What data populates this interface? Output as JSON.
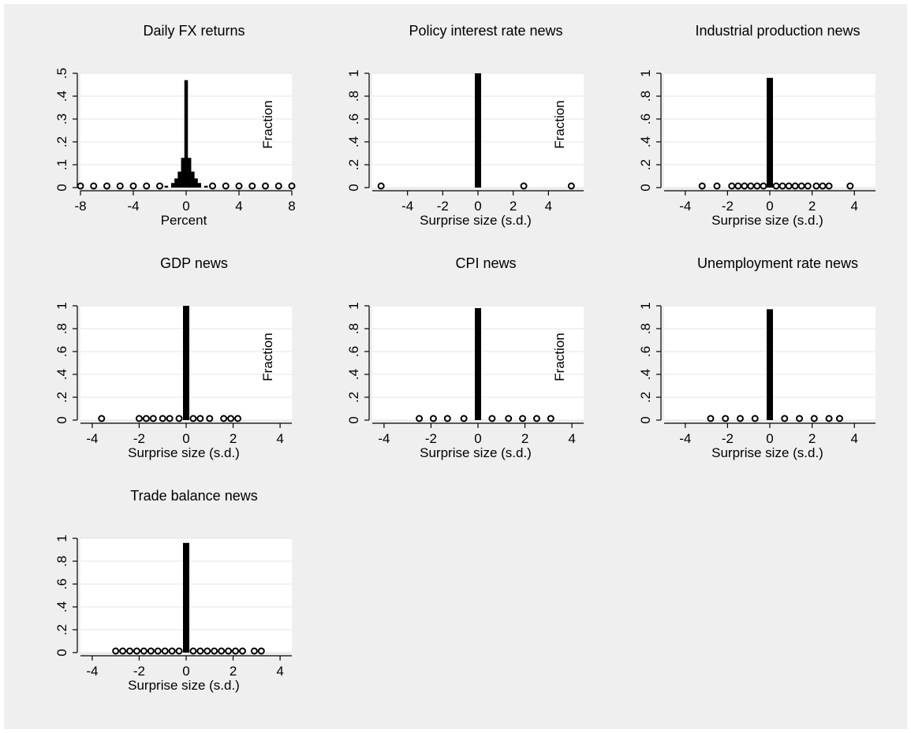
{
  "chart_data": [
    {
      "type": "bar",
      "title": "Daily FX returns",
      "xlabel": "Percent",
      "ylabel": "Fraction",
      "xlim": [
        -8,
        8
      ],
      "ylim": [
        0,
        0.5
      ],
      "xticks": [
        -8,
        -4,
        0,
        4,
        8
      ],
      "xtick_labels": [
        "-8",
        "-4",
        "0",
        "4",
        "8"
      ],
      "yticks": [
        0,
        0.1,
        0.2,
        0.3,
        0.4,
        0.5
      ],
      "ytick_labels": [
        "0",
        ".1",
        ".2",
        ".3",
        ".4",
        ".5"
      ],
      "grid": true,
      "bars": [
        {
          "x": -8.0,
          "y": 0.001
        },
        {
          "x": -7.0,
          "y": 0.001
        },
        {
          "x": -6.0,
          "y": 0.001
        },
        {
          "x": -5.0,
          "y": 0.001
        },
        {
          "x": -4.0,
          "y": 0.001
        },
        {
          "x": -3.0,
          "y": 0.002
        },
        {
          "x": -2.0,
          "y": 0.004
        },
        {
          "x": -1.5,
          "y": 0.008
        },
        {
          "x": -1.0,
          "y": 0.02
        },
        {
          "x": -0.75,
          "y": 0.04
        },
        {
          "x": -0.5,
          "y": 0.07
        },
        {
          "x": -0.25,
          "y": 0.13
        },
        {
          "x": 0.0,
          "y": 0.47
        },
        {
          "x": 0.25,
          "y": 0.13
        },
        {
          "x": 0.5,
          "y": 0.07
        },
        {
          "x": 0.75,
          "y": 0.04
        },
        {
          "x": 1.0,
          "y": 0.02
        },
        {
          "x": 1.5,
          "y": 0.008
        },
        {
          "x": 2.0,
          "y": 0.004
        },
        {
          "x": 3.0,
          "y": 0.002
        },
        {
          "x": 4.0,
          "y": 0.001
        },
        {
          "x": 5.0,
          "y": 0.001
        },
        {
          "x": 6.0,
          "y": 0.001
        },
        {
          "x": 7.0,
          "y": 0.001
        },
        {
          "x": 8.0,
          "y": 0.001
        }
      ]
    },
    {
      "type": "bar",
      "title": "Policy interest rate news",
      "xlabel": "Surprise size (s.d.)",
      "ylabel": "Fraction",
      "xlim": [
        -6,
        6
      ],
      "ylim": [
        0,
        1
      ],
      "xticks": [
        -4,
        -2,
        0,
        2,
        4
      ],
      "xtick_labels": [
        "-4",
        "-2",
        "0",
        "2",
        "4"
      ],
      "yticks": [
        0,
        0.2,
        0.4,
        0.6,
        0.8,
        1
      ],
      "ytick_labels": [
        "0",
        ".2",
        ".4",
        ".6",
        ".8",
        "1"
      ],
      "grid": true,
      "bars": [
        {
          "x": -5.5,
          "y": 0.002
        },
        {
          "x": 0.0,
          "y": 1.0
        },
        {
          "x": 2.6,
          "y": 0.002
        },
        {
          "x": 5.3,
          "y": 0.002
        }
      ]
    },
    {
      "type": "bar",
      "title": "Industrial production news",
      "xlabel": "Surprise size (s.d.)",
      "ylabel": "",
      "xlim": [
        -5,
        5
      ],
      "ylim": [
        0,
        1
      ],
      "xticks": [
        -4,
        -2,
        0,
        2,
        4
      ],
      "xtick_labels": [
        "-4",
        "-2",
        "0",
        "2",
        "4"
      ],
      "yticks": [
        0,
        0.2,
        0.4,
        0.6,
        0.8,
        1
      ],
      "ytick_labels": [
        "0",
        ".2",
        ".4",
        ".6",
        ".8",
        "1"
      ],
      "grid": true,
      "bars": [
        {
          "x": -3.2,
          "y": 0.002
        },
        {
          "x": -2.5,
          "y": 0.002
        },
        {
          "x": -1.8,
          "y": 0.003
        },
        {
          "x": -1.5,
          "y": 0.003
        },
        {
          "x": -1.2,
          "y": 0.003
        },
        {
          "x": -0.9,
          "y": 0.004
        },
        {
          "x": -0.6,
          "y": 0.005
        },
        {
          "x": -0.3,
          "y": 0.006
        },
        {
          "x": 0.0,
          "y": 0.96
        },
        {
          "x": 0.3,
          "y": 0.006
        },
        {
          "x": 0.6,
          "y": 0.005
        },
        {
          "x": 0.9,
          "y": 0.004
        },
        {
          "x": 1.2,
          "y": 0.003
        },
        {
          "x": 1.5,
          "y": 0.003
        },
        {
          "x": 1.8,
          "y": 0.003
        },
        {
          "x": 2.2,
          "y": 0.002
        },
        {
          "x": 2.5,
          "y": 0.002
        },
        {
          "x": 2.8,
          "y": 0.002
        },
        {
          "x": 3.8,
          "y": 0.002
        }
      ]
    },
    {
      "type": "bar",
      "title": "GDP news",
      "xlabel": "Surprise size (s.d.)",
      "ylabel": "Fraction",
      "xlim": [
        -4.5,
        4.5
      ],
      "ylim": [
        0,
        1
      ],
      "xticks": [
        -4,
        -2,
        0,
        2,
        4
      ],
      "xtick_labels": [
        "-4",
        "-2",
        "0",
        "2",
        "4"
      ],
      "yticks": [
        0,
        0.2,
        0.4,
        0.6,
        0.8,
        1
      ],
      "ytick_labels": [
        "0",
        ".2",
        ".4",
        ".6",
        ".8",
        "1"
      ],
      "grid": true,
      "bars": [
        {
          "x": -3.6,
          "y": 0.002
        },
        {
          "x": -2.0,
          "y": 0.002
        },
        {
          "x": -1.7,
          "y": 0.002
        },
        {
          "x": -1.4,
          "y": 0.002
        },
        {
          "x": -1.0,
          "y": 0.002
        },
        {
          "x": -0.7,
          "y": 0.002
        },
        {
          "x": -0.3,
          "y": 0.002
        },
        {
          "x": 0.0,
          "y": 1.0
        },
        {
          "x": 0.3,
          "y": 0.002
        },
        {
          "x": 0.6,
          "y": 0.002
        },
        {
          "x": 1.0,
          "y": 0.002
        },
        {
          "x": 1.6,
          "y": 0.002
        },
        {
          "x": 1.9,
          "y": 0.002
        },
        {
          "x": 2.2,
          "y": 0.002
        }
      ]
    },
    {
      "type": "bar",
      "title": "CPI news",
      "xlabel": "Surprise size (s.d.)",
      "ylabel": "Fraction",
      "xlim": [
        -4.5,
        4.5
      ],
      "ylim": [
        0,
        1
      ],
      "xticks": [
        -4,
        -2,
        0,
        2,
        4
      ],
      "xtick_labels": [
        "-4",
        "-2",
        "0",
        "2",
        "4"
      ],
      "yticks": [
        0,
        0.2,
        0.4,
        0.6,
        0.8,
        1
      ],
      "ytick_labels": [
        "0",
        ".2",
        ".4",
        ".6",
        ".8",
        "1"
      ],
      "grid": true,
      "bars": [
        {
          "x": -2.5,
          "y": 0.002
        },
        {
          "x": -1.9,
          "y": 0.002
        },
        {
          "x": -1.3,
          "y": 0.002
        },
        {
          "x": -0.6,
          "y": 0.002
        },
        {
          "x": 0.0,
          "y": 0.98
        },
        {
          "x": 0.6,
          "y": 0.002
        },
        {
          "x": 1.3,
          "y": 0.002
        },
        {
          "x": 1.9,
          "y": 0.002
        },
        {
          "x": 2.5,
          "y": 0.002
        },
        {
          "x": 3.1,
          "y": 0.002
        }
      ]
    },
    {
      "type": "bar",
      "title": "Unemployment rate news",
      "xlabel": "Surprise size (s.d.)",
      "ylabel": "",
      "xlim": [
        -5,
        5
      ],
      "ylim": [
        0,
        1
      ],
      "xticks": [
        -4,
        -2,
        0,
        2,
        4
      ],
      "xtick_labels": [
        "-4",
        "-2",
        "0",
        "2",
        "4"
      ],
      "yticks": [
        0,
        0.2,
        0.4,
        0.6,
        0.8,
        1
      ],
      "ytick_labels": [
        "0",
        ".2",
        ".4",
        ".6",
        ".8",
        "1"
      ],
      "grid": true,
      "bars": [
        {
          "x": -2.8,
          "y": 0.002
        },
        {
          "x": -2.1,
          "y": 0.002
        },
        {
          "x": -1.4,
          "y": 0.002
        },
        {
          "x": -0.7,
          "y": 0.002
        },
        {
          "x": 0.0,
          "y": 0.97
        },
        {
          "x": 0.7,
          "y": 0.002
        },
        {
          "x": 1.4,
          "y": 0.002
        },
        {
          "x": 2.1,
          "y": 0.002
        },
        {
          "x": 2.8,
          "y": 0.002
        },
        {
          "x": 3.3,
          "y": 0.002
        }
      ]
    },
    {
      "type": "bar",
      "title": "Trade balance news",
      "xlabel": "Surprise size (s.d.)",
      "ylabel": "",
      "xlim": [
        -4.5,
        4.5
      ],
      "ylim": [
        0,
        1
      ],
      "xticks": [
        -4,
        -2,
        0,
        2,
        4
      ],
      "xtick_labels": [
        "-4",
        "-2",
        "0",
        "2",
        "4"
      ],
      "yticks": [
        0,
        0.2,
        0.4,
        0.6,
        0.8,
        1
      ],
      "ytick_labels": [
        "0",
        ".2",
        ".4",
        ".6",
        ".8",
        "1"
      ],
      "grid": true,
      "bars": [
        {
          "x": -3.0,
          "y": 0.002
        },
        {
          "x": -2.7,
          "y": 0.002
        },
        {
          "x": -2.4,
          "y": 0.002
        },
        {
          "x": -2.1,
          "y": 0.003
        },
        {
          "x": -1.8,
          "y": 0.003
        },
        {
          "x": -1.5,
          "y": 0.003
        },
        {
          "x": -1.2,
          "y": 0.004
        },
        {
          "x": -0.9,
          "y": 0.004
        },
        {
          "x": -0.6,
          "y": 0.005
        },
        {
          "x": -0.3,
          "y": 0.006
        },
        {
          "x": 0.0,
          "y": 0.96
        },
        {
          "x": 0.3,
          "y": 0.006
        },
        {
          "x": 0.6,
          "y": 0.005
        },
        {
          "x": 0.9,
          "y": 0.004
        },
        {
          "x": 1.2,
          "y": 0.004
        },
        {
          "x": 1.5,
          "y": 0.003
        },
        {
          "x": 1.8,
          "y": 0.003
        },
        {
          "x": 2.1,
          "y": 0.003
        },
        {
          "x": 2.4,
          "y": 0.002
        },
        {
          "x": 2.9,
          "y": 0.002
        },
        {
          "x": 3.2,
          "y": 0.002
        }
      ]
    }
  ]
}
